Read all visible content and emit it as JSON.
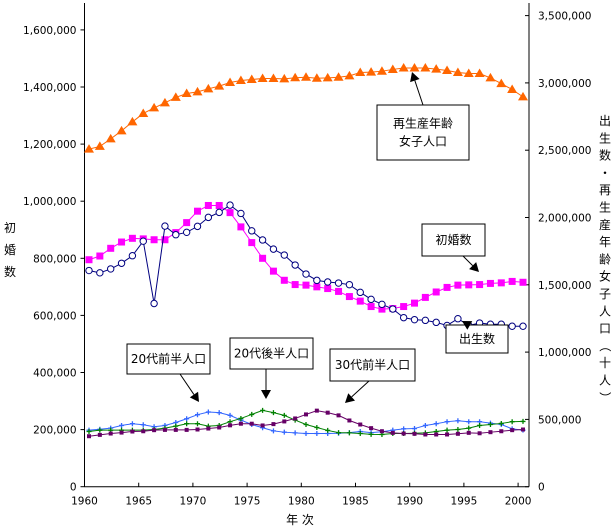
{
  "chart_data": {
    "type": "line",
    "title": "",
    "xlabel": "年 次",
    "ylabel_left": "初婚数",
    "ylabel_right": "出生数・再生産年齢女子人口（十人）",
    "x": [
      1960,
      1961,
      1962,
      1963,
      1964,
      1965,
      1966,
      1967,
      1968,
      1969,
      1970,
      1971,
      1972,
      1973,
      1974,
      1975,
      1976,
      1977,
      1978,
      1979,
      1980,
      1981,
      1982,
      1983,
      1984,
      1985,
      1986,
      1987,
      1988,
      1989,
      1990,
      1991,
      1992,
      1993,
      1994,
      1995,
      1996,
      1997,
      1998,
      1999,
      2000
    ],
    "x_ticks": [
      "1960",
      "1965",
      "1970",
      "1975",
      "1980",
      "1985",
      "1990",
      "1995",
      "2000"
    ],
    "ylim_left": [
      0,
      1700000
    ],
    "ylim_right": [
      0,
      3500000
    ],
    "y_ticks_left": [
      "0",
      "200,000",
      "400,000",
      "600,000",
      "800,000",
      "1,000,000",
      "1,200,000",
      "1,400,000",
      "1,600,000"
    ],
    "y_ticks_right": [
      "0",
      "500,000",
      "1,000,000",
      "1,500,000",
      "2,000,000",
      "2,500,000",
      "3,000,000",
      "3,500,000"
    ],
    "grid": false,
    "series": [
      {
        "name": "再生産年齢女子人口",
        "axis": "right",
        "color": "#ff6600",
        "marker": "triangle",
        "values": [
          2508000,
          2528000,
          2584000,
          2644000,
          2710000,
          2773000,
          2814000,
          2852000,
          2892000,
          2921000,
          2933000,
          2956000,
          2976000,
          3003000,
          3018000,
          3025000,
          3033000,
          3033000,
          3030000,
          3038000,
          3042000,
          3035000,
          3037000,
          3042000,
          3052000,
          3077000,
          3080000,
          3087000,
          3100000,
          3111000,
          3111000,
          3111000,
          3102000,
          3092000,
          3077000,
          3070000,
          3070000,
          3037000,
          2995000,
          2951000,
          2896000
        ]
      },
      {
        "name": "初婚数",
        "axis": "left",
        "color": "#ff00ff",
        "marker": "square",
        "values": [
          795000,
          808000,
          835000,
          857000,
          870000,
          868000,
          865000,
          865000,
          890000,
          925000,
          965000,
          985000,
          985000,
          960000,
          910000,
          855000,
          800000,
          755000,
          723000,
          708000,
          706000,
          700000,
          694000,
          684000,
          666000,
          650000,
          631000,
          622000,
          624000,
          631000,
          643000,
          663000,
          682000,
          698000,
          706000,
          707000,
          708000,
          712000,
          714000,
          719000,
          716000
        ]
      },
      {
        "name": "出生数",
        "axis": "right",
        "color": "#000080",
        "marker": "circle-open",
        "values": [
          1606000,
          1589000,
          1618000,
          1660000,
          1716000,
          1824000,
          1361000,
          1936000,
          1872000,
          1890000,
          1934000,
          2001000,
          2038000,
          2092000,
          2030000,
          1901000,
          1833000,
          1765000,
          1721000,
          1647000,
          1580000,
          1533000,
          1521000,
          1513000,
          1501000,
          1444000,
          1392000,
          1355000,
          1320000,
          1256000,
          1241000,
          1236000,
          1221000,
          1198000,
          1248000,
          1198000,
          1216000,
          1207000,
          1207000,
          1192000,
          1192000
        ]
      },
      {
        "name": "20代前半人口",
        "axis": "right",
        "color": "#3366ff",
        "marker": "plus",
        "values": [
          420000,
          427000,
          435000,
          455000,
          468000,
          460000,
          445000,
          455000,
          477000,
          505000,
          535000,
          555000,
          550000,
          530000,
          495000,
          462000,
          438000,
          415000,
          405000,
          400000,
          395000,
          395000,
          395000,
          397000,
          402000,
          410000,
          402000,
          408000,
          420000,
          430000,
          432000,
          455000,
          468000,
          483000,
          490000,
          483000,
          483000,
          472000,
          462000,
          430000,
          420000
        ]
      },
      {
        "name": "20代後半人口",
        "axis": "right",
        "color": "#008000",
        "marker": "plus",
        "values": [
          410000,
          420000,
          420000,
          420000,
          420000,
          420000,
          425000,
          435000,
          450000,
          468000,
          468000,
          450000,
          455000,
          483000,
          507000,
          537000,
          567000,
          550000,
          530000,
          495000,
          462000,
          440000,
          418000,
          402000,
          400000,
          395000,
          389000,
          388000,
          395000,
          395000,
          397000,
          400000,
          410000,
          420000,
          425000,
          435000,
          455000,
          462000,
          470000,
          483000,
          485000
        ]
      },
      {
        "name": "30代前半人口",
        "axis": "right",
        "color": "#660066",
        "marker": "square-small",
        "values": [
          375000,
          385000,
          395000,
          402000,
          410000,
          412000,
          420000,
          422000,
          422000,
          422000,
          425000,
          432000,
          440000,
          456000,
          468000,
          468000,
          455000,
          465000,
          485000,
          507000,
          537000,
          565000,
          550000,
          530000,
          492000,
          462000,
          435000,
          412000,
          400000,
          395000,
          393000,
          388000,
          388000,
          388000,
          393000,
          400000,
          397000,
          405000,
          412000,
          420000,
          425000
        ]
      }
    ],
    "annotations": [
      {
        "text_lines": [
          "再生産年齢",
          "女子人口"
        ],
        "target_series": "再生産年齢女子人口"
      },
      {
        "text_lines": [
          "初婚数"
        ],
        "target_series": "初婚数"
      },
      {
        "text_lines": [
          "出生数"
        ],
        "target_series": "出生数"
      },
      {
        "text_lines": [
          "20代前半人口"
        ],
        "target_series": "20代前半人口"
      },
      {
        "text_lines": [
          "20代後半人口"
        ],
        "target_series": "20代後半人口"
      },
      {
        "text_lines": [
          "30代前半人口"
        ],
        "target_series": "30代前半人口"
      }
    ]
  }
}
